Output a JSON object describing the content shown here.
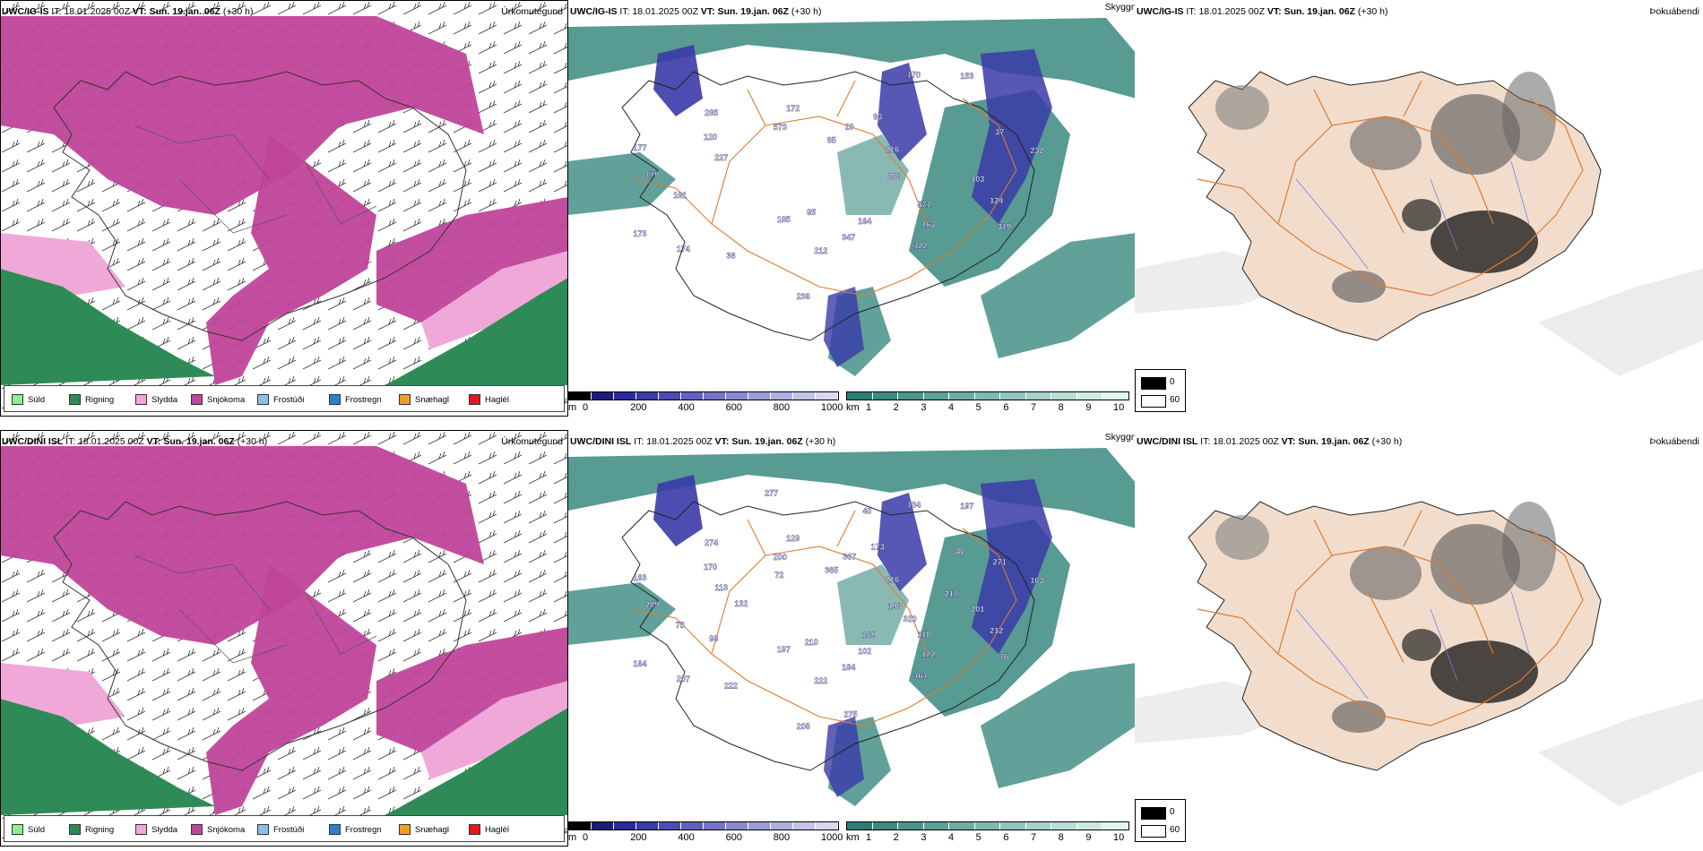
{
  "rows": [
    {
      "model": "UWC/IG-IS",
      "it_label": "IT:",
      "it_value": "18.01.2025 00Z",
      "vt_label": "VT:",
      "vt_value": "Sun. 19.jan. 06Z",
      "lead": "(+30 h)",
      "cloud_labels": [
        "288",
        "212",
        "177",
        "93",
        "319",
        "185",
        "285",
        "216",
        "122",
        "173",
        "172",
        "232",
        "347",
        "170",
        "20",
        "124",
        "95",
        "120",
        "153",
        "163",
        "174",
        "573",
        "37",
        "164",
        "161",
        "85",
        "103",
        "236",
        "227",
        "170",
        "571",
        "38"
      ]
    },
    {
      "model": "UWC/DINI ISL",
      "it_label": "IT:",
      "it_value": "18.01.2025 00Z",
      "vt_label": "VT:",
      "vt_value": "Sun. 19.jan. 06Z",
      "lead": "(+30 h)",
      "cloud_labels": [
        "198",
        "222",
        "183",
        "173",
        "76",
        "197",
        "274",
        "216",
        "161",
        "164",
        "129",
        "163",
        "184",
        "209",
        "367",
        "212",
        "210",
        "170",
        "197",
        "122",
        "207",
        "200",
        "271",
        "102",
        "75",
        "365",
        "201",
        "208",
        "113",
        "134",
        "118",
        "222",
        "72",
        "38",
        "169",
        "98",
        "277",
        "217",
        "275",
        "132",
        "40",
        "320"
      ]
    }
  ],
  "panel_titles": {
    "precip": "Úrkomutegund",
    "cloud": "Skyggni",
    "fog": "Þokuábendi"
  },
  "precip_legend": [
    {
      "label": "Súld",
      "color": "#90ee90"
    },
    {
      "label": "Rigning",
      "color": "#2e8b57"
    },
    {
      "label": "Slydda",
      "color": "#f0a8d8"
    },
    {
      "label": "Snjókoma",
      "color": "#c0449a"
    },
    {
      "label": "Frostúði",
      "color": "#8fbce8"
    },
    {
      "label": "Frostregn",
      "color": "#2f7fc8"
    },
    {
      "label": "Snæhagl",
      "color": "#f0a020"
    },
    {
      "label": "Haglél",
      "color": "#e8141e"
    }
  ],
  "cloudbase_bar": {
    "unit": "m",
    "ticks": [
      "0",
      "200",
      "400",
      "600",
      "800",
      "1000"
    ],
    "colors": [
      "#000000",
      "#1c1c7c",
      "#2a2a9a",
      "#3a3aa8",
      "#4c4cb4",
      "#6060c0",
      "#7474c8",
      "#8888d0",
      "#9c9cd8",
      "#b0b0e0",
      "#c4c4e8",
      "#d8d8f0"
    ]
  },
  "visibility_bar": {
    "unit": "km",
    "ticks": [
      "1",
      "2",
      "3",
      "4",
      "5",
      "6",
      "7",
      "8",
      "9",
      "10"
    ],
    "colors": [
      "#2a7e74",
      "#3a8a80",
      "#4a968c",
      "#5aa298",
      "#6caea4",
      "#7ebab0",
      "#90c6bc",
      "#a4d2c8",
      "#b8ded6",
      "#cceae4",
      "#e0f4f0"
    ]
  },
  "fog_legend": [
    {
      "label": "0",
      "color": "#000000"
    },
    {
      "label": "60",
      "color": "#ffffff"
    }
  ],
  "colors": {
    "snow": "#c0449a",
    "sleet": "#f0a8d8",
    "rain": "#2e8b57",
    "cloud_low": "#3a3aa8",
    "vis_teal": "#3a8a80",
    "land_fog": "#f2ddcc",
    "road": "#e07a30"
  }
}
